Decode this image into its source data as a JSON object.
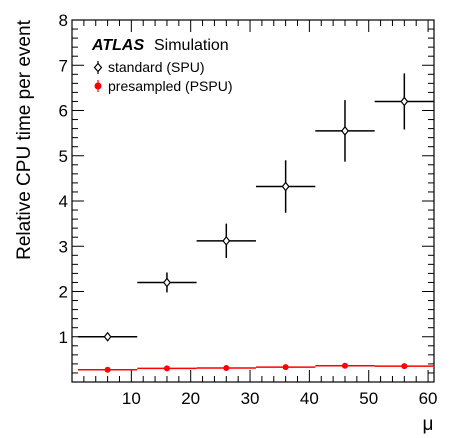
{
  "chart_data": {
    "type": "scatter",
    "xlabel": "μ",
    "ylabel": "Relative CPU time per event",
    "xlim": [
      0,
      61
    ],
    "ylim": [
      0,
      8
    ],
    "xticks": [
      10,
      20,
      30,
      40,
      50,
      60
    ],
    "yticks": [
      1,
      2,
      3,
      4,
      5,
      6,
      7,
      8
    ],
    "labels": {
      "experiment": "ATLAS",
      "status": "Simulation"
    },
    "legend_placement": "top-left",
    "series": [
      {
        "name": "standard (SPU)",
        "color": "#000000",
        "marker": "open-diamond",
        "points": [
          {
            "x": 6,
            "y": 1.0,
            "xlo": 1,
            "xhi": 11,
            "yerr": 0.07
          },
          {
            "x": 16,
            "y": 2.2,
            "xlo": 11,
            "xhi": 21,
            "yerr": 0.22
          },
          {
            "x": 26,
            "y": 3.12,
            "xlo": 21,
            "xhi": 31,
            "yerr": 0.38
          },
          {
            "x": 36,
            "y": 4.32,
            "xlo": 31,
            "xhi": 41,
            "yerr": 0.58
          },
          {
            "x": 46,
            "y": 5.55,
            "xlo": 41,
            "xhi": 51,
            "yerr": 0.68
          },
          {
            "x": 56,
            "y": 6.2,
            "xlo": 51,
            "xhi": 61,
            "yerr": 0.62
          }
        ]
      },
      {
        "name": "presampled (PSPU)",
        "color": "#ff0000",
        "marker": "filled-circle",
        "points": [
          {
            "x": 6,
            "y": 0.27,
            "xlo": 1,
            "xhi": 11,
            "yerr": 0.01
          },
          {
            "x": 16,
            "y": 0.3,
            "xlo": 11,
            "xhi": 21,
            "yerr": 0.01
          },
          {
            "x": 26,
            "y": 0.31,
            "xlo": 21,
            "xhi": 31,
            "yerr": 0.01
          },
          {
            "x": 36,
            "y": 0.33,
            "xlo": 31,
            "xhi": 41,
            "yerr": 0.01
          },
          {
            "x": 46,
            "y": 0.36,
            "xlo": 41,
            "xhi": 51,
            "yerr": 0.01
          },
          {
            "x": 56,
            "y": 0.35,
            "xlo": 51,
            "xhi": 61,
            "yerr": 0.01
          }
        ]
      }
    ]
  }
}
